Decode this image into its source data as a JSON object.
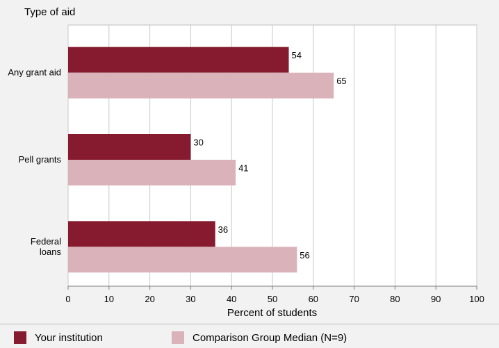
{
  "chart_data": {
    "type": "bar",
    "orientation": "horizontal",
    "ylabel": "Type of aid",
    "xlabel": "Percent of students",
    "categories": [
      "Any grant aid",
      "Pell grants",
      "Federal loans"
    ],
    "category_lines": [
      [
        "Any grant aid"
      ],
      [
        "Pell grants"
      ],
      [
        "Federal",
        "loans"
      ]
    ],
    "series": [
      {
        "name": "Your institution",
        "values": [
          54,
          30,
          36
        ],
        "color": "#861a2e"
      },
      {
        "name": "Comparison Group Median (N=9)",
        "values": [
          65,
          41,
          56
        ],
        "color": "#d9b3b9"
      }
    ],
    "xlim": [
      0,
      100
    ],
    "xticks": [
      0,
      10,
      20,
      30,
      40,
      50,
      60,
      70,
      80,
      90,
      100
    ],
    "grid": true,
    "legend_position": "bottom"
  }
}
